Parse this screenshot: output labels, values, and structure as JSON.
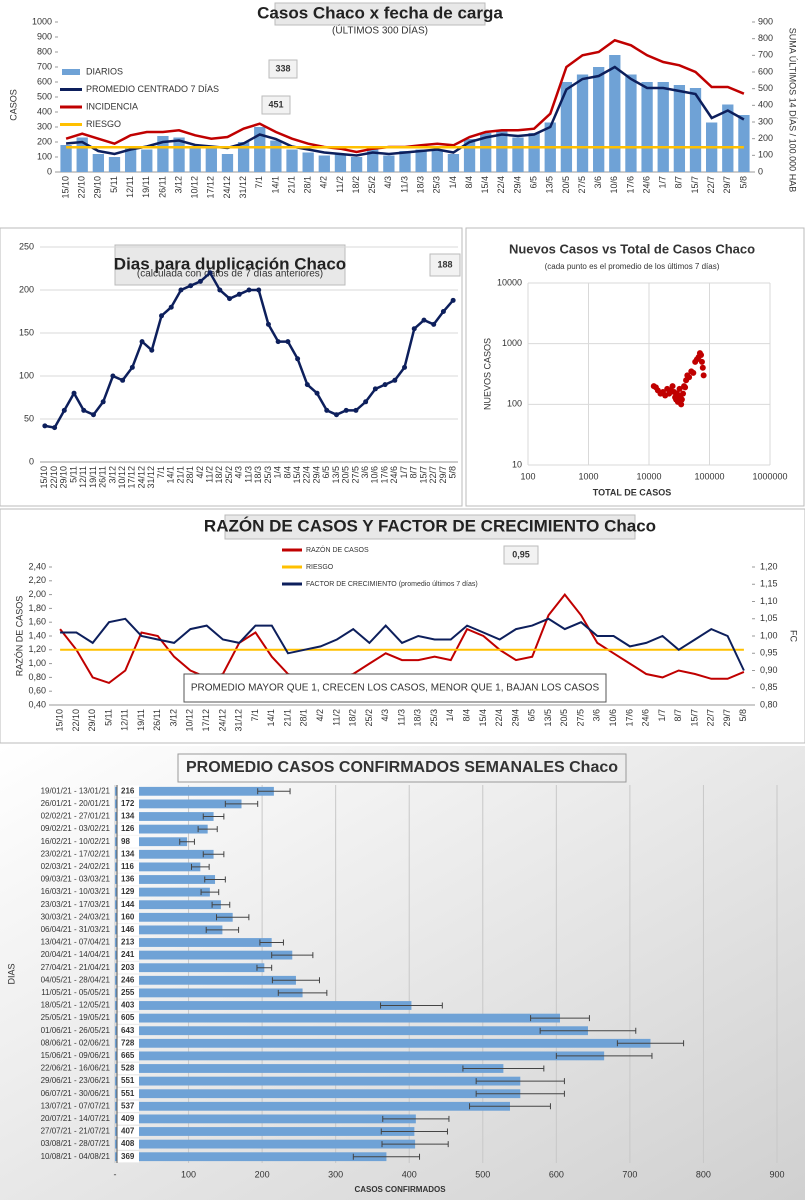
{
  "chart_data": [
    {
      "type": "combo",
      "title": "Casos  Chaco x fecha de carga",
      "subtitle": "(ÚLTIMOS 300 DÍAS)",
      "y_label": "CASOS",
      "y2_label": "SUMA  ÚLTIMOS 14 DÍAS / 100.000 HAB",
      "annotations": [
        "338",
        "451"
      ],
      "categories": [
        "15/10",
        "22/10",
        "29/10",
        "5/11",
        "12/11",
        "19/11",
        "26/11",
        "3/12",
        "10/12",
        "17/12",
        "24/12",
        "31/12",
        "7/1",
        "14/1",
        "21/1",
        "28/1",
        "4/2",
        "11/2",
        "18/2",
        "25/2",
        "4/3",
        "11/3",
        "18/3",
        "25/3",
        "1/4",
        "8/4",
        "15/4",
        "22/4",
        "29/4",
        "6/5",
        "13/5",
        "20/5",
        "27/5",
        "3/6",
        "10/6",
        "17/6",
        "24/6",
        "1/7",
        "8/7",
        "15/7",
        "22/7",
        "29/7",
        "5/8"
      ],
      "series": [
        {
          "name": "DIARIOS",
          "type": "bar",
          "color": "#6fa2d6",
          "values": [
            180,
            230,
            120,
            100,
            160,
            150,
            240,
            230,
            170,
            160,
            120,
            200,
            300,
            210,
            150,
            130,
            110,
            120,
            100,
            150,
            110,
            140,
            150,
            150,
            120,
            220,
            260,
            280,
            230,
            260,
            330,
            600,
            650,
            700,
            780,
            650,
            600,
            600,
            580,
            560,
            330,
            450,
            380
          ]
        },
        {
          "name": "PROMEDIO CENTRADO 7 DÍAS",
          "type": "line",
          "color": "#0d1f5c",
          "values": [
            190,
            200,
            140,
            120,
            150,
            170,
            200,
            210,
            180,
            170,
            160,
            190,
            250,
            220,
            170,
            150,
            130,
            120,
            110,
            130,
            120,
            130,
            140,
            150,
            130,
            200,
            230,
            250,
            240,
            250,
            300,
            550,
            620,
            640,
            700,
            620,
            560,
            560,
            540,
            520,
            360,
            410,
            350
          ]
        },
        {
          "name": "INCIDENCIA",
          "type": "line",
          "axis": "y2",
          "color": "#c00000",
          "values": [
            200,
            230,
            200,
            170,
            220,
            240,
            240,
            250,
            220,
            200,
            210,
            260,
            290,
            240,
            200,
            170,
            150,
            140,
            120,
            140,
            150,
            150,
            160,
            170,
            160,
            210,
            240,
            250,
            250,
            260,
            350,
            630,
            700,
            720,
            790,
            760,
            700,
            660,
            640,
            600,
            510,
            510,
            470
          ]
        },
        {
          "name": "RIESGO",
          "type": "line",
          "color": "#ffc000",
          "values": [
            165,
            165,
            165,
            165,
            165,
            165,
            165,
            165,
            165,
            165,
            165,
            165,
            165,
            165,
            165,
            165,
            165,
            165,
            165,
            165,
            165,
            165,
            165,
            165,
            165,
            165,
            165,
            165,
            165,
            165,
            165,
            165,
            165,
            165,
            165,
            165,
            165,
            165,
            165,
            165,
            165,
            165,
            165
          ]
        }
      ],
      "ylim": [
        0,
        1000
      ],
      "yticks": [
        0,
        100,
        200,
        300,
        400,
        500,
        600,
        700,
        800,
        900,
        1000
      ],
      "y2lim": [
        0,
        900
      ],
      "y2ticks": [
        0,
        100,
        200,
        300,
        400,
        500,
        600,
        700,
        800,
        900
      ],
      "grid": false,
      "legend": "top-left"
    },
    {
      "type": "line",
      "title": "Dias para duplicación Chaco",
      "subtitle": "(calculada con datos de 7 días anteriores)",
      "annotations": [
        "188"
      ],
      "categories": [
        "15/10",
        "22/10",
        "29/10",
        "5/11",
        "12/11",
        "19/11",
        "26/11",
        "3/12",
        "10/12",
        "17/12",
        "24/12",
        "31/12",
        "7/1",
        "14/1",
        "21/1",
        "28/1",
        "4/2",
        "11/2",
        "18/2",
        "25/2",
        "4/3",
        "11/3",
        "18/3",
        "25/3",
        "1/4",
        "8/4",
        "15/4",
        "22/4",
        "29/4",
        "6/5",
        "13/5",
        "20/5",
        "27/5",
        "3/6",
        "10/6",
        "17/6",
        "24/6",
        "1/7",
        "8/7",
        "15/7",
        "22/7",
        "29/7",
        "5/8"
      ],
      "series": [
        {
          "name": null,
          "color": "#0d1f5c",
          "values": [
            42,
            40,
            60,
            80,
            60,
            55,
            70,
            100,
            95,
            110,
            140,
            130,
            170,
            180,
            200,
            205,
            210,
            220,
            200,
            190,
            195,
            200,
            200,
            160,
            140,
            140,
            120,
            90,
            80,
            60,
            55,
            60,
            60,
            70,
            85,
            90,
            95,
            110,
            155,
            165,
            160,
            175,
            188
          ]
        }
      ],
      "ylim": [
        0,
        250
      ],
      "yticks": [
        0,
        50,
        100,
        150,
        200,
        250
      ],
      "grid": true
    },
    {
      "type": "scatter",
      "title": "Nuevos Casos vs Total de Casos Chaco",
      "subtitle": "(cada punto es el promedio de los últimos 7 días)",
      "x_label": "TOTAL DE CASOS",
      "y_label": "NUEVOS  CASOS",
      "color": "#c00000",
      "x": [
        12000,
        13000,
        14000,
        15500,
        17000,
        18500,
        20000,
        21500,
        23000,
        24500,
        26000,
        27000,
        28000,
        29000,
        30000,
        31000,
        32000,
        33000,
        34000,
        35000,
        36500,
        38000,
        39500,
        41000,
        43000,
        46000,
        50000,
        54000,
        58000,
        62000,
        66000,
        69500,
        72500,
        75000,
        77500,
        80000
      ],
      "y": [
        200,
        190,
        170,
        150,
        160,
        140,
        180,
        150,
        170,
        200,
        160,
        130,
        120,
        150,
        110,
        140,
        180,
        130,
        100,
        120,
        150,
        200,
        190,
        250,
        300,
        280,
        350,
        330,
        500,
        550,
        600,
        700,
        650,
        500,
        400,
        300
      ],
      "log_x": true,
      "log_y": true,
      "xlim": [
        100,
        1000000
      ],
      "xticks": [
        100,
        1000,
        10000,
        100000,
        1000000
      ],
      "ylim": [
        10,
        10000
      ],
      "yticks": [
        10,
        100,
        1000,
        10000
      ],
      "grid": true
    },
    {
      "type": "line",
      "title": "RAZÓN DE CASOS Y FACTOR DE CRECIMIENTO Chaco",
      "y_label": "RAZÓN DE CASOS",
      "y2_label": "FC",
      "annotations": [
        "0,95",
        "PROMEDIO MAYOR QUE 1, CRECEN LOS CASOS, MENOR QUE 1, BAJAN LOS CASOS"
      ],
      "categories": [
        "15/10",
        "22/10",
        "29/10",
        "5/11",
        "12/11",
        "19/11",
        "26/11",
        "3/12",
        "10/12",
        "17/12",
        "24/12",
        "31/12",
        "7/1",
        "14/1",
        "21/1",
        "28/1",
        "4/2",
        "11/2",
        "18/2",
        "25/2",
        "4/3",
        "11/3",
        "18/3",
        "25/3",
        "1/4",
        "8/4",
        "15/4",
        "22/4",
        "29/4",
        "6/5",
        "13/5",
        "20/5",
        "27/5",
        "3/6",
        "10/6",
        "17/6",
        "24/6",
        "1/7",
        "8/7",
        "15/7",
        "22/7",
        "29/7",
        "5/8"
      ],
      "series": [
        {
          "name": "RAZÓN DE CASOS",
          "color": "#c00000",
          "values": [
            1.5,
            1.2,
            0.8,
            0.72,
            0.9,
            1.45,
            1.4,
            1.1,
            0.9,
            0.8,
            0.85,
            1.3,
            1.45,
            1.1,
            0.85,
            0.78,
            0.7,
            0.8,
            0.85,
            1.0,
            1.15,
            1.05,
            1.05,
            1.1,
            1.05,
            1.5,
            1.4,
            1.2,
            1.05,
            1.1,
            1.7,
            2.0,
            1.7,
            1.3,
            1.15,
            1.0,
            0.85,
            0.8,
            0.9,
            0.85,
            0.78,
            0.78,
            0.88
          ]
        },
        {
          "name": "RIESGO",
          "color": "#ffc000",
          "values": [
            1.2,
            1.2,
            1.2,
            1.2,
            1.2,
            1.2,
            1.2,
            1.2,
            1.2,
            1.2,
            1.2,
            1.2,
            1.2,
            1.2,
            1.2,
            1.2,
            1.2,
            1.2,
            1.2,
            1.2,
            1.2,
            1.2,
            1.2,
            1.2,
            1.2,
            1.2,
            1.2,
            1.2,
            1.2,
            1.2,
            1.2,
            1.2,
            1.2,
            1.2,
            1.2,
            1.2,
            1.2,
            1.2,
            1.2,
            1.2,
            1.2,
            1.2,
            1.2
          ]
        },
        {
          "name": "FACTOR DE CRECIMIENTO (promedio últimos 7 días)",
          "axis": "y2",
          "color": "#0d1f5c",
          "values": [
            1.01,
            1.01,
            0.98,
            1.04,
            1.05,
            1.0,
            0.99,
            0.98,
            1.02,
            1.03,
            0.99,
            0.98,
            1.03,
            1.03,
            0.95,
            0.96,
            0.97,
            0.99,
            1.02,
            0.98,
            1.03,
            0.98,
            1.0,
            0.99,
            0.99,
            1.03,
            1.01,
            0.99,
            1.02,
            1.03,
            1.05,
            1.02,
            1.04,
            1.0,
            1.0,
            0.97,
            0.98,
            1.0,
            0.96,
            0.99,
            1.02,
            1.0,
            0.9
          ]
        }
      ],
      "ylim": [
        0.4,
        2.4
      ],
      "yticks": [
        {
          "value": 0.4,
          "label": "0,40"
        },
        {
          "value": 0.6,
          "label": "0,60"
        },
        {
          "value": 0.8,
          "label": "0,80"
        },
        {
          "value": 1.0,
          "label": "1,00"
        },
        {
          "value": 1.2,
          "label": "1,20"
        },
        {
          "value": 1.4,
          "label": "1,40"
        },
        {
          "value": 1.6,
          "label": "1,60"
        },
        {
          "value": 1.8,
          "label": "1,80"
        },
        {
          "value": 2.0,
          "label": "2,00"
        },
        {
          "value": 2.2,
          "label": "2,20"
        },
        {
          "value": 2.4,
          "label": "2,40"
        }
      ],
      "y2lim": [
        0.8,
        1.2
      ],
      "y2ticks": [
        {
          "value": 0.8,
          "label": "0,80"
        },
        {
          "value": 0.85,
          "label": "0,85"
        },
        {
          "value": 0.9,
          "label": "0,90"
        },
        {
          "value": 0.95,
          "label": "0,95"
        },
        {
          "value": 1.0,
          "label": "1,00"
        },
        {
          "value": 1.05,
          "label": "1,05"
        },
        {
          "value": 1.1,
          "label": "1,10"
        },
        {
          "value": 1.15,
          "label": "1,15"
        },
        {
          "value": 1.2,
          "label": "1,20"
        }
      ],
      "grid": false,
      "legend": "top-center"
    },
    {
      "type": "bar",
      "orientation": "horizontal",
      "title": "PROMEDIO CASOS CONFIRMADOS SEMANALES Chaco",
      "x_label": "CASOS CONFIRMADOS",
      "y_label": "DIAS",
      "color": "#6fa2d6",
      "categories": [
        "19/01/21 - 13/01/21",
        "26/01/21 - 20/01/21",
        "02/02/21 - 27/01/21",
        "09/02/21 - 03/02/21",
        "16/02/21 - 10/02/21",
        "23/02/21 - 17/02/21",
        "02/03/21 - 24/02/21",
        "09/03/21 - 03/03/21",
        "16/03/21 - 10/03/21",
        "23/03/21 - 17/03/21",
        "30/03/21 - 24/03/21",
        "06/04/21 - 31/03/21",
        "13/04/21 - 07/04/21",
        "20/04/21 - 14/04/21",
        "27/04/21 - 21/04/21",
        "04/05/21 - 28/04/21",
        "11/05/21 - 05/05/21",
        "18/05/21 - 12/05/21",
        "25/05/21 - 19/05/21",
        "01/06/21 - 26/05/21",
        "08/06/21 - 02/06/21",
        "15/06/21 - 09/06/21",
        "22/06/21 - 16/06/21",
        "29/06/21 - 23/06/21",
        "06/07/21 - 30/06/21",
        "13/07/21 - 07/07/21",
        "20/07/21 - 14/07/21",
        "27/07/21 - 21/07/21",
        "03/08/21 - 28/07/21",
        "10/08/21 - 04/08/21"
      ],
      "values": [
        216,
        172,
        134,
        126,
        98,
        134,
        116,
        136,
        129,
        144,
        160,
        146,
        213,
        241,
        203,
        246,
        255,
        403,
        605,
        643,
        728,
        665,
        528,
        551,
        551,
        537,
        409,
        407,
        408,
        369
      ],
      "errors": [
        22,
        22,
        14,
        13,
        10,
        14,
        12,
        14,
        12,
        12,
        22,
        22,
        16,
        28,
        10,
        32,
        33,
        42,
        40,
        65,
        45,
        65,
        55,
        60,
        60,
        55,
        45,
        45,
        45,
        45
      ],
      "xlim": [
        0,
        900
      ],
      "xticks": [
        {
          "value": 0,
          "label": "-"
        },
        100,
        200,
        300,
        400,
        500,
        600,
        700,
        800,
        900
      ],
      "grid": true
    }
  ]
}
